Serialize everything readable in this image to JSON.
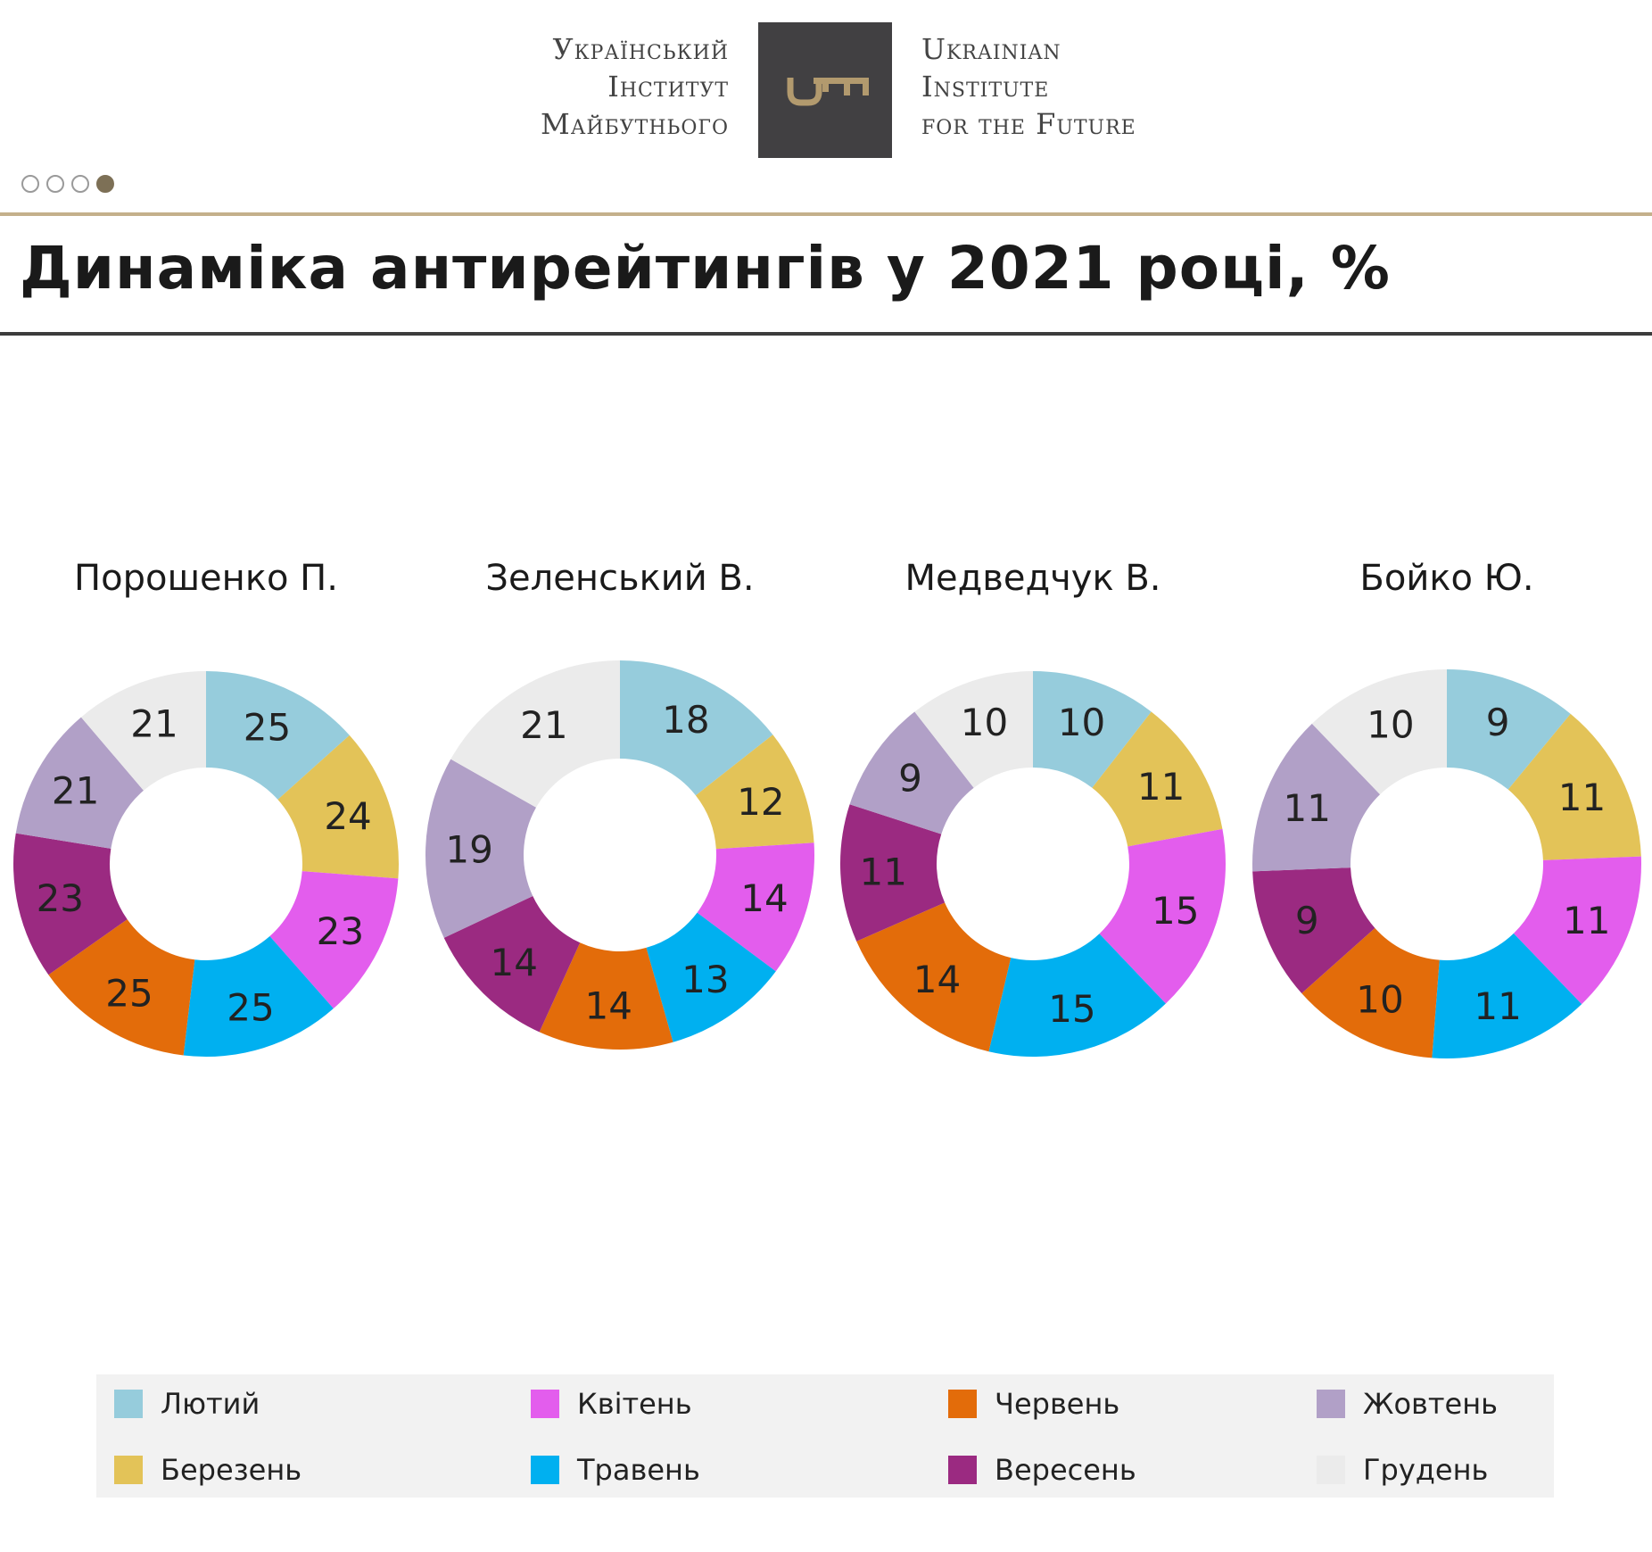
{
  "header": {
    "logo_ua_lines": [
      "Український",
      "Інститут",
      "Майбутнього"
    ],
    "logo_en_lines": [
      "Ukrainian",
      "Institute",
      "for the Future"
    ],
    "logo_icon": "key-icon",
    "slide_dots": 4,
    "active_dot": 3
  },
  "title": "Динаміка антирейтингів у 2021 році, %",
  "colors": {
    "gold_rule": "#c4b08b",
    "logo_box": "#414042",
    "key_gold": "#b29a6e"
  },
  "months": [
    {
      "name": "Лютий",
      "color": "#96ccdc"
    },
    {
      "name": "Березень",
      "color": "#e3c358"
    },
    {
      "name": "Квітень",
      "color": "#e35ded"
    },
    {
      "name": "Травень",
      "color": "#00b0f0"
    },
    {
      "name": "Червень",
      "color": "#e36c0a"
    },
    {
      "name": "Вересень",
      "color": "#9b2a81"
    },
    {
      "name": "Жовтень",
      "color": "#b1a0c7"
    },
    {
      "name": "Грудень",
      "color": "#ebebeb"
    }
  ],
  "legend_order": [
    0,
    2,
    4,
    6,
    1,
    3,
    5,
    7
  ],
  "chart_data": [
    {
      "type": "pie",
      "title": "Порошенко П.",
      "categories": [
        "Лютий",
        "Березень",
        "Квітень",
        "Травень",
        "Червень",
        "Вересень",
        "Жовтень",
        "Грудень"
      ],
      "values": [
        25,
        24,
        23,
        25,
        25,
        23,
        21,
        21
      ]
    },
    {
      "type": "pie",
      "title": "Зеленський В.",
      "categories": [
        "Лютий",
        "Березень",
        "Квітень",
        "Травень",
        "Червень",
        "Вересень",
        "Жовтень",
        "Грудень"
      ],
      "values": [
        18,
        12,
        14,
        13,
        14,
        14,
        19,
        21
      ]
    },
    {
      "type": "pie",
      "title": "Медведчук В.",
      "categories": [
        "Лютий",
        "Березень",
        "Квітень",
        "Травень",
        "Червень",
        "Вересень",
        "Жовтень",
        "Грудень"
      ],
      "values": [
        10,
        11,
        15,
        15,
        14,
        11,
        9,
        10
      ]
    },
    {
      "type": "pie",
      "title": "Бойко Ю.",
      "categories": [
        "Лютий",
        "Березень",
        "Квітень",
        "Травень",
        "Червень",
        "Вересень",
        "Жовтень",
        "Грудень"
      ],
      "values": [
        9,
        11,
        11,
        11,
        10,
        9,
        11,
        10
      ]
    }
  ]
}
